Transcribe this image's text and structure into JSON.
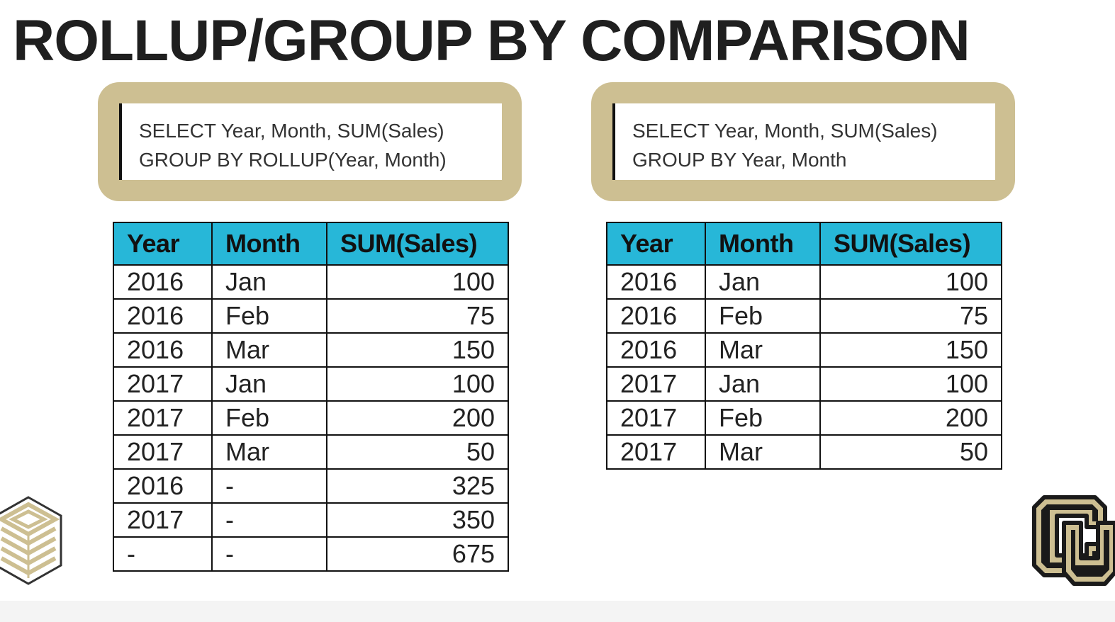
{
  "title": "ROLLUP/GROUP BY COMPARISON",
  "colors": {
    "accent_gold": "#cdbf92",
    "header_cyan": "#27b7d8",
    "text_dark": "#1f1f1f"
  },
  "left_panel": {
    "query": {
      "line1": "SELECT Year, Month, SUM(Sales)",
      "line2": "GROUP BY ROLLUP(Year, Month)"
    },
    "table": {
      "headers": [
        "Year",
        "Month",
        "SUM(Sales)"
      ],
      "rows": [
        [
          "2016",
          "Jan",
          "100"
        ],
        [
          "2016",
          "Feb",
          "75"
        ],
        [
          "2016",
          "Mar",
          "150"
        ],
        [
          "2017",
          "Jan",
          "100"
        ],
        [
          "2017",
          "Feb",
          "200"
        ],
        [
          "2017",
          "Mar",
          "50"
        ],
        [
          "2016",
          "-",
          "325"
        ],
        [
          "2017",
          "-",
          "350"
        ],
        [
          "-",
          "-",
          "675"
        ]
      ]
    }
  },
  "right_panel": {
    "query": {
      "line1": "SELECT Year, Month, SUM(Sales)",
      "line2": "GROUP BY Year, Month"
    },
    "table": {
      "headers": [
        "Year",
        "Month",
        "SUM(Sales)"
      ],
      "rows": [
        [
          "2016",
          "Jan",
          "100"
        ],
        [
          "2016",
          "Feb",
          "75"
        ],
        [
          "2016",
          "Mar",
          "150"
        ],
        [
          "2017",
          "Jan",
          "100"
        ],
        [
          "2017",
          "Feb",
          "200"
        ],
        [
          "2017",
          "Mar",
          "50"
        ]
      ]
    }
  },
  "icons": {
    "left_logo": "stacked-cube-logo-icon",
    "right_logo": "cu-buffs-logo-icon"
  }
}
